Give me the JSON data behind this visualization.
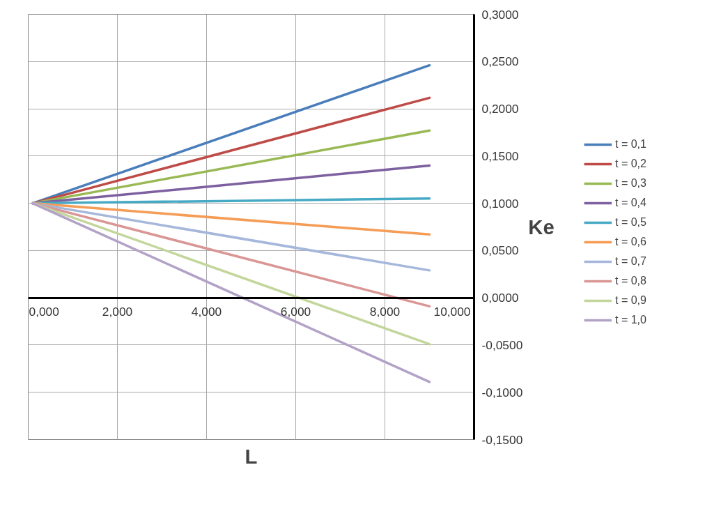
{
  "chart_data": {
    "type": "line",
    "xlabel": "L",
    "ylabel": "Ke",
    "x": [
      0.1,
      9.0
    ],
    "series": [
      {
        "name": "t = 0,1",
        "color": "#4a7ebb",
        "values": [
          0.1,
          0.246
        ]
      },
      {
        "name": "t = 0,2",
        "color": "#be4b48",
        "values": [
          0.1,
          0.2116
        ]
      },
      {
        "name": "t = 0,3",
        "color": "#98b954",
        "values": [
          0.1,
          0.177
        ]
      },
      {
        "name": "t = 0,4",
        "color": "#7d60a0",
        "values": [
          0.1,
          0.14
        ]
      },
      {
        "name": "t = 0,5",
        "color": "#46aac5",
        "values": [
          0.1,
          0.105
        ]
      },
      {
        "name": "t = 0,6",
        "color": "#f59d56",
        "values": [
          0.1,
          0.067
        ]
      },
      {
        "name": "t = 0,7",
        "color": "#a5b7db",
        "values": [
          0.1,
          0.029
        ]
      },
      {
        "name": "t = 0,8",
        "color": "#d99694",
        "values": [
          0.1,
          -0.009
        ]
      },
      {
        "name": "t = 0,9",
        "color": "#c3d69b",
        "values": [
          0.1,
          -0.049
        ]
      },
      {
        "name": "t = 1,0",
        "color": "#b3a2c7",
        "values": [
          0.1,
          -0.089
        ]
      }
    ],
    "xlim": [
      0,
      10
    ],
    "ylim": [
      -0.15,
      0.3
    ],
    "xticks": [
      {
        "value": 0,
        "label": "0,000"
      },
      {
        "value": 2,
        "label": "2,000"
      },
      {
        "value": 4,
        "label": "4,000"
      },
      {
        "value": 6,
        "label": "6,000"
      },
      {
        "value": 8,
        "label": "8,000"
      },
      {
        "value": 10,
        "label": "10,000"
      }
    ],
    "yticks": [
      {
        "value": -0.15,
        "label": "-0,1500"
      },
      {
        "value": -0.1,
        "label": "-0,1000"
      },
      {
        "value": -0.05,
        "label": "-0,0500"
      },
      {
        "value": 0,
        "label": "0,0000"
      },
      {
        "value": 0.05,
        "label": "0,0500"
      },
      {
        "value": 0.1,
        "label": "0,1000"
      },
      {
        "value": 0.15,
        "label": "0,1500"
      },
      {
        "value": 0.2,
        "label": "0,2000"
      },
      {
        "value": 0.25,
        "label": "0,2500"
      },
      {
        "value": 0.3,
        "label": "0,3000"
      }
    ],
    "grid": true,
    "legend": "right",
    "marker": "none",
    "line_style": "solid"
  }
}
